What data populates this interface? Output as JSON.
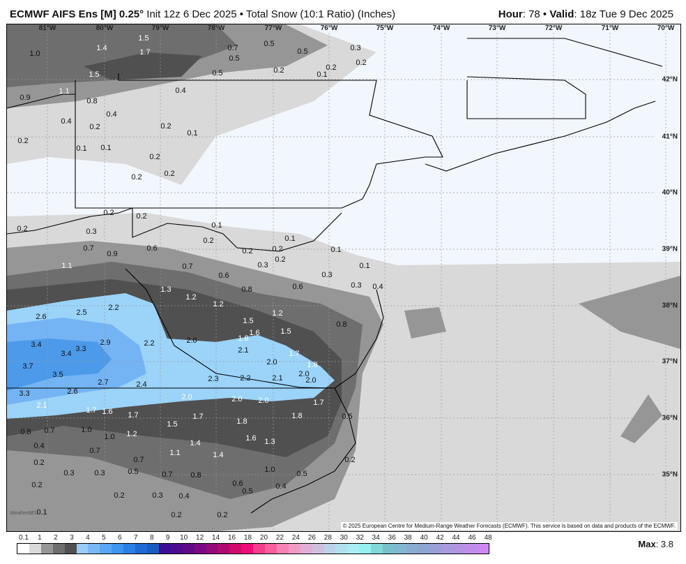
{
  "header": {
    "model": "ECMWF AIFS Ens [M] 0.25",
    "degree": "°",
    "init": " Init 12z 6 Dec 2025 • Total Snow (10:1 Ratio) (Inches)",
    "hour_label": "Hour",
    "hour": ": 78 • ",
    "valid_label": "Valid",
    "valid": ": 18z Tue 9 Dec 2025"
  },
  "map": {
    "longitudes": [
      "81°W",
      "80°W",
      "79°W",
      "78°W",
      "77°W",
      "76°W",
      "75°W",
      "74°W",
      "73°W",
      "72°W",
      "71°W",
      "70°W"
    ],
    "latitudes": [
      "42°N",
      "41°N",
      "40°N",
      "39°N",
      "38°N",
      "37°N",
      "36°N",
      "35°N"
    ],
    "labels": [
      "1.0",
      "1.5",
      "1.4",
      "1.7",
      "1.5",
      "1.1",
      "0.9",
      "0.8",
      "0.4",
      "0.4",
      "0.2",
      "0.2",
      "0.1",
      "0.2",
      "0.1",
      "0.1",
      "0.2",
      "0.2",
      "0.2",
      "0.7",
      "0.5",
      "0.5",
      "0.5",
      "0.3",
      "0.2",
      "0.2",
      "0.1",
      "0.2",
      "0.5",
      "0.4",
      "0.2",
      "0.2",
      "0.2",
      "0.3",
      "0.1",
      "0.2",
      "0.7",
      "0.9",
      "0.6",
      "0.2",
      "0.2",
      "0.1",
      "0.2",
      "0.1",
      "0.3",
      "1.1",
      "0.7",
      "0.6",
      "0.1",
      "0.3",
      "0.6",
      "0.3",
      "0.4",
      "1.3",
      "0.8",
      "1.2",
      "1.2",
      "1.2",
      "2.2",
      "2.5",
      "2.6",
      "1.5",
      "1.6",
      "1.5",
      "0.8",
      "1.8",
      "3.4",
      "2.9",
      "2.2",
      "2.0",
      "3.3",
      "3.4",
      "2.1",
      "1.7",
      "2.0",
      "1.8",
      "3.7",
      "2.0",
      "3.5",
      "2.3",
      "2.2",
      "2.1",
      "2.0",
      "2.7",
      "2.4",
      "2.6",
      "3.3",
      "2.0",
      "2.0",
      "2.0",
      "1.7",
      "2.1",
      "1.7",
      "1.6",
      "1.7",
      "1.7",
      "1.8",
      "0.5",
      "1.8",
      "1.5",
      "0.8",
      "0.7",
      "1.0",
      "1.0",
      "1.2",
      "1.6",
      "1.3",
      "0.4",
      "1.4",
      "0.7",
      "1.1",
      "1.4",
      "0.2",
      "0.7",
      "0.2",
      "0.3",
      "0.3",
      "0.5",
      "0.7",
      "0.8",
      "1.0",
      "0.5",
      "0.2",
      "0.6",
      "0.4",
      "0.5",
      "0.2",
      "0.3",
      "0.4",
      "0.1",
      "0.2",
      "0.2"
    ],
    "copyright": "© 2025 European Centre for Medium-Range Weather Forecasts (ECMWF). This service is based on data and products of the ECMWF.",
    "logo": "WeatherBELL",
    "colors": {
      "land_none": "#f2f6fd",
      "band_0_1": "#d9d9d9",
      "band_1": "#969696",
      "band_1_5": "#6e6e6e",
      "band_2": "#505050",
      "blue_1": "#9bd3f9",
      "blue_2": "#74b4f4",
      "blue_3": "#4d9aea"
    }
  },
  "legend": {
    "ticks": [
      "0.1",
      "1",
      "2",
      "3",
      "4",
      "5",
      "6",
      "7",
      "8",
      "9",
      "10",
      "12",
      "14",
      "16",
      "18",
      "20",
      "22",
      "24",
      "26",
      "28",
      "30",
      "32",
      "34",
      "36",
      "38",
      "40",
      "42",
      "44",
      "46",
      "48"
    ],
    "colors": [
      "#ffffff",
      "#d9d9d9",
      "#969696",
      "#6e6e6e",
      "#505050",
      "#99ccf7",
      "#7ab8f5",
      "#5aa6f2",
      "#3f94ee",
      "#2a7fe6",
      "#1f6ad4",
      "#1a5bc0",
      "#3b0f96",
      "#4d0c90",
      "#600a8a",
      "#7a0a84",
      "#940a7a",
      "#b00a72",
      "#d00a6e",
      "#ee0a78",
      "#f43c8c",
      "#f6609e",
      "#f582b2",
      "#f09ac4",
      "#e0aed6",
      "#cfc0e0",
      "#bcd2e8",
      "#b0e2ee",
      "#a8eef2",
      "#96f0f0",
      "#80d8d8",
      "#78c0cc",
      "#80b8d0",
      "#88acd2",
      "#90a4d4",
      "#9c9ed8",
      "#a89adc",
      "#b494e2",
      "#c08eea",
      "#cc88f0"
    ],
    "max_label": "Max",
    "max_value": ": 3.8"
  }
}
